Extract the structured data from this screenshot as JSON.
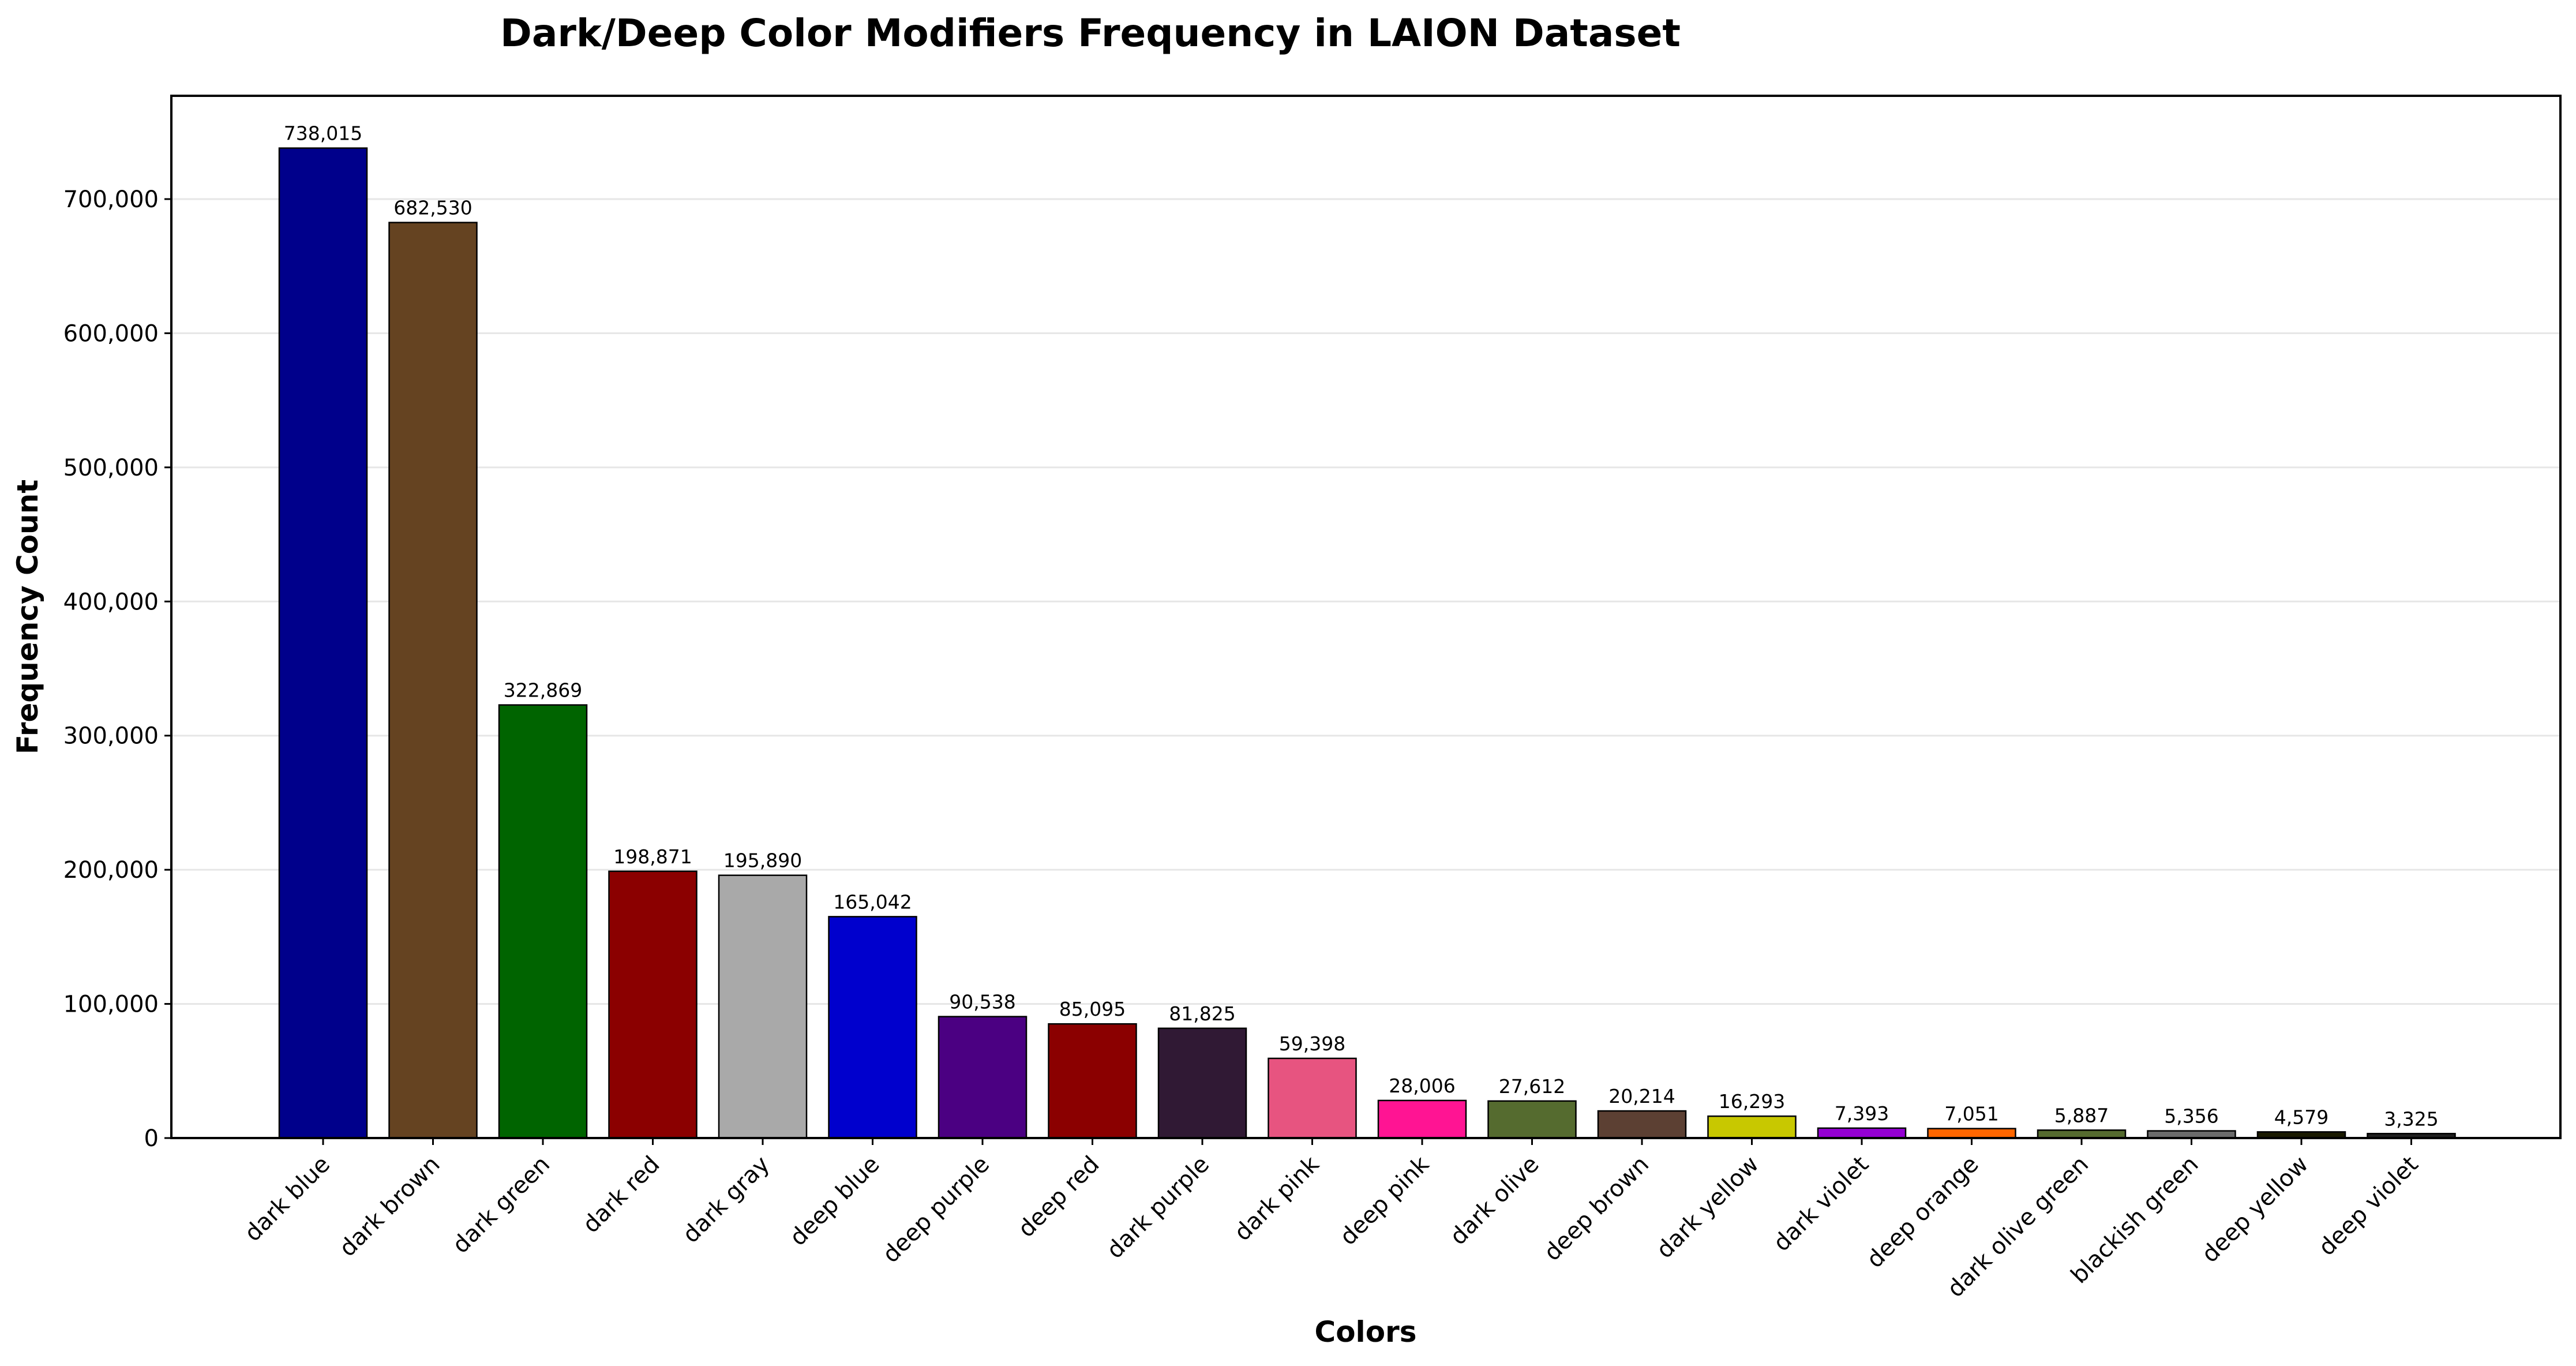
{
  "chart_data": {
    "type": "bar",
    "title": "Dark/Deep Color Modifiers Frequency in LAION Dataset",
    "xlabel": "Colors",
    "ylabel": "Frequency Count",
    "ylim": [
      0,
      777000
    ],
    "yticks": [
      0,
      100000,
      200000,
      300000,
      400000,
      500000,
      600000,
      700000
    ],
    "ytick_labels": [
      "0",
      "100,000",
      "200,000",
      "300,000",
      "400,000",
      "500,000",
      "600,000",
      "700,000"
    ],
    "grid": "horizontal",
    "categories": [
      "dark blue",
      "dark brown",
      "dark green",
      "dark red",
      "dark gray",
      "deep blue",
      "deep purple",
      "deep red",
      "dark purple",
      "dark pink",
      "deep pink",
      "dark olive",
      "deep brown",
      "dark yellow",
      "dark violet",
      "deep orange",
      "dark olive green",
      "blackish green",
      "deep yellow",
      "deep violet"
    ],
    "values": [
      738015,
      682530,
      322869,
      198871,
      195890,
      165042,
      90538,
      85095,
      81825,
      59398,
      28006,
      27612,
      20214,
      16293,
      7393,
      7051,
      5887,
      5356,
      4579,
      3325
    ],
    "value_labels": [
      "738,015",
      "682,530",
      "322,869",
      "198,871",
      "195,890",
      "165,042",
      "90,538",
      "85,095",
      "81,825",
      "59,398",
      "28,006",
      "27,612",
      "20,214",
      "16,293",
      "7,393",
      "7,051",
      "5,887",
      "5,356",
      "4,579",
      "3,325"
    ],
    "colors": [
      "#00008b",
      "#654321",
      "#006400",
      "#8b0000",
      "#a9a9a9",
      "#0000cd",
      "#4b0082",
      "#8b0000",
      "#301934",
      "#e75480",
      "#ff1493",
      "#556b2f",
      "#5c4033",
      "#c8c800",
      "#9400d3",
      "#ff6600",
      "#556b2f",
      "#6b6b6b",
      "#1a1a00",
      "#1f1f1f"
    ]
  }
}
